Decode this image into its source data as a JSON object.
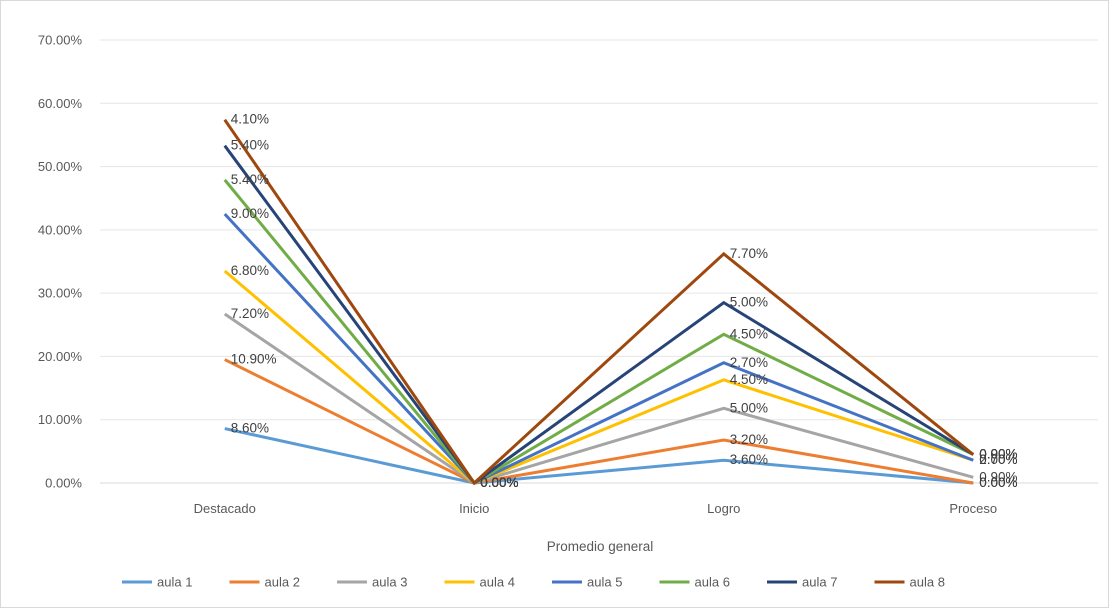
{
  "chart_data": {
    "type": "line",
    "title": "",
    "xlabel": "Promedio general",
    "ylabel": "",
    "stacked": true,
    "ylim": [
      0,
      70
    ],
    "y_tick_values": [
      0,
      10,
      20,
      30,
      40,
      50,
      60,
      70
    ],
    "y_tick_labels": [
      "0.00%",
      "10.00%",
      "20.00%",
      "30.00%",
      "40.00%",
      "50.00%",
      "60.00%",
      "70.00%"
    ],
    "grid": true,
    "legend_position": "bottom",
    "categories": [
      "Destacado",
      "Inicio",
      "Logro",
      "Proceso"
    ],
    "series": [
      {
        "name": "aula 1",
        "color": "#5B9BD5",
        "values": [
          8.6,
          0,
          3.6,
          0
        ],
        "labels": [
          "8.60%",
          "0.00%",
          "3.60%",
          "0.00%"
        ]
      },
      {
        "name": "aula 2",
        "color": "#ED7D31",
        "values": [
          10.9,
          0,
          3.2,
          0
        ],
        "labels": [
          "10.90%",
          "0.00%",
          "3.20%",
          "0.00%"
        ]
      },
      {
        "name": "aula 3",
        "color": "#A5A5A5",
        "values": [
          7.2,
          0,
          5.0,
          0.9
        ],
        "labels": [
          "7.20%",
          "0.00%",
          "5.00%",
          "0.90%"
        ]
      },
      {
        "name": "aula 4",
        "color": "#FFC000",
        "values": [
          6.8,
          0,
          4.5,
          2.7
        ],
        "labels": [
          "6.80%",
          "0.00%",
          "4.50%",
          "2.70%"
        ]
      },
      {
        "name": "aula 5",
        "color": "#4472C4",
        "values": [
          9.0,
          0,
          2.7,
          0
        ],
        "labels": [
          "9.00%",
          "0.00%",
          "2.70%",
          "0.00%"
        ]
      },
      {
        "name": "aula 6",
        "color": "#70AD47",
        "values": [
          5.4,
          0,
          4.5,
          0.9
        ],
        "labels": [
          "5.40%",
          "0.00%",
          "4.50%",
          "0.90%"
        ]
      },
      {
        "name": "aula 7",
        "color": "#264478",
        "values": [
          5.4,
          0,
          5.0,
          0
        ],
        "labels": [
          "5.40%",
          "0.00%",
          "5.00%",
          "0.00%"
        ]
      },
      {
        "name": "aula 8",
        "color": "#9E480E",
        "values": [
          4.1,
          0,
          7.7,
          0
        ],
        "labels": [
          "4.10%",
          "0.00%",
          "7.70%",
          "0.00%"
        ]
      }
    ]
  }
}
